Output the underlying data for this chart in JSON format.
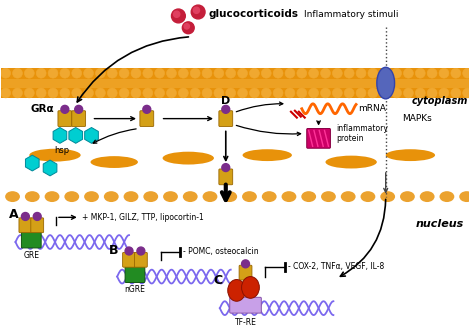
{
  "background_color": "#ffffff",
  "membrane_color": "#E8920A",
  "cytoplasm_label": "cytoplasm",
  "nucleus_label": "nucleus",
  "mapks_label": "MAPKs",
  "gluco_label": "glucocorticoids",
  "inflam_label": "Inflammatory stimuli",
  "mrna_label": "mRNA",
  "inflam_prot_label": "inflammatory\nprotein",
  "gra_label": "GRα",
  "hsp_label": "hsp",
  "label_A": "A",
  "label_B": "B",
  "label_C": "C",
  "label_D": "D",
  "gre_label": "GRE",
  "ngre_label": "nGRE",
  "tfre_label": "TF-RE",
  "text_A": "+ MKP-1, GILZ, TTP, lipocortin-1",
  "text_B": "- POMC, osteocalcin",
  "text_C": "- COX-2, TNFα, VEGF, IL-8",
  "receptor_color": "#D4A017",
  "receptor_knob_color": "#7B2D8B",
  "hsp_color": "#00CED1",
  "gluco_color": "#C41E3A",
  "dna_color": "#7B68EE",
  "gre_color": "#228B22",
  "arrow_color": "#000000"
}
